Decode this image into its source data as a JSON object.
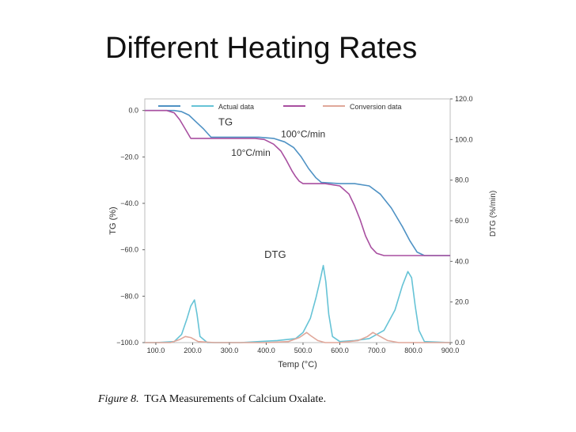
{
  "slide": {
    "title": "Different Heating Rates",
    "caption_prefix": "Figure 8.",
    "caption_text": "TGA Measurements of Calcium Oxalate."
  },
  "colors": {
    "rate_100": "#4f92c4",
    "rate_10": "#a84fa0",
    "actual": "#66c3d6",
    "conversion": "#e0a79a",
    "axis": "#666666",
    "frame": "#bdbdbd"
  },
  "chart_data": {
    "type": "line",
    "xlabel": "Temp (°C)",
    "ylabel": "TG (%)",
    "y2label": "DTG (%/min)",
    "xlim": [
      70,
      900
    ],
    "ylim": [
      -100,
      5
    ],
    "y2lim": [
      0,
      120
    ],
    "x_ticks": [
      "100.0",
      "200.0",
      "300.0",
      "400.0",
      "500.0",
      "600.0",
      "700.0",
      "800.0",
      "900.0"
    ],
    "y_ticks": [
      "0.0",
      "−20.0",
      "−40.0",
      "−60.0",
      "−80.0",
      "−100.0"
    ],
    "y2_ticks": [
      "120.0",
      "100.0",
      "80.0",
      "60.0",
      "40.0",
      "20.0",
      "0.0"
    ],
    "legend": {
      "placement": "top",
      "entries": [
        {
          "label": "Actual data",
          "color": "#66c3d6"
        },
        {
          "label": "Conversion data",
          "color": "#e0a79a"
        }
      ]
    },
    "annotations": [
      {
        "text": "TG",
        "x": 270,
        "y": -6.5
      },
      {
        "text": "100°C/min",
        "x": 440,
        "y": -11.5
      },
      {
        "text": "10°C/min",
        "x": 305,
        "y": -19.5
      },
      {
        "text": "DTG",
        "x": 395,
        "y": -63.5
      }
    ],
    "series": [
      {
        "axis": "left",
        "color": "#4f92c4",
        "x": [
          70,
          150,
          170,
          190,
          210,
          230,
          250,
          380,
          420,
          450,
          475,
          495,
          515,
          535,
          550,
          600,
          640,
          680,
          710,
          740,
          770,
          790,
          810,
          830,
          900
        ],
        "y": [
          0,
          0,
          -0.5,
          -2,
          -5,
          -8,
          -11.5,
          -11.5,
          -12,
          -13.5,
          -16,
          -20,
          -25,
          -29,
          -31,
          -31.5,
          -31.5,
          -32.5,
          -36,
          -42,
          -50,
          -56,
          -61,
          -62.5,
          -62.5
        ]
      },
      {
        "axis": "left",
        "color": "#a84fa0",
        "x": [
          70,
          130,
          150,
          165,
          180,
          195,
          370,
          395,
          420,
          440,
          455,
          470,
          480,
          490,
          500,
          560,
          600,
          625,
          640,
          655,
          670,
          685,
          700,
          720,
          900
        ],
        "y": [
          0,
          0,
          -1,
          -4,
          -8,
          -12,
          -12,
          -12.5,
          -14.5,
          -17.5,
          -21.5,
          -26,
          -28.5,
          -30.5,
          -31.5,
          -31.5,
          -32.5,
          -36,
          -41,
          -47,
          -54,
          -59,
          -61.5,
          -62.5,
          -62.5
        ]
      },
      {
        "axis": "right",
        "color": "#66c3d6",
        "x": [
          70,
          100,
          150,
          170,
          185,
          195,
          205,
          212,
          220,
          240,
          330,
          380,
          430,
          480,
          500,
          520,
          535,
          548,
          555,
          562,
          570,
          580,
          600,
          640,
          680,
          720,
          750,
          770,
          785,
          795,
          805,
          815,
          830,
          900
        ],
        "y": [
          0,
          0,
          0.5,
          4,
          12,
          18,
          21,
          14,
          3,
          0,
          0,
          0.5,
          1,
          2,
          5,
          12,
          22,
          32,
          38,
          30,
          14,
          3,
          0.5,
          1,
          2,
          6,
          16,
          28,
          35,
          32,
          18,
          6,
          0.5,
          0
        ]
      },
      {
        "axis": "right",
        "color": "#e0a79a",
        "x": [
          70,
          140,
          165,
          180,
          195,
          215,
          260,
          400,
          460,
          490,
          510,
          520,
          540,
          560,
          600,
          650,
          675,
          690,
          710,
          730,
          760,
          900
        ],
        "y": [
          0,
          0,
          1.5,
          3,
          2.5,
          0.5,
          0,
          0,
          0.5,
          2.5,
          5,
          3.5,
          1,
          0,
          0,
          1,
          3,
          5,
          3,
          1,
          0,
          0
        ]
      }
    ]
  }
}
